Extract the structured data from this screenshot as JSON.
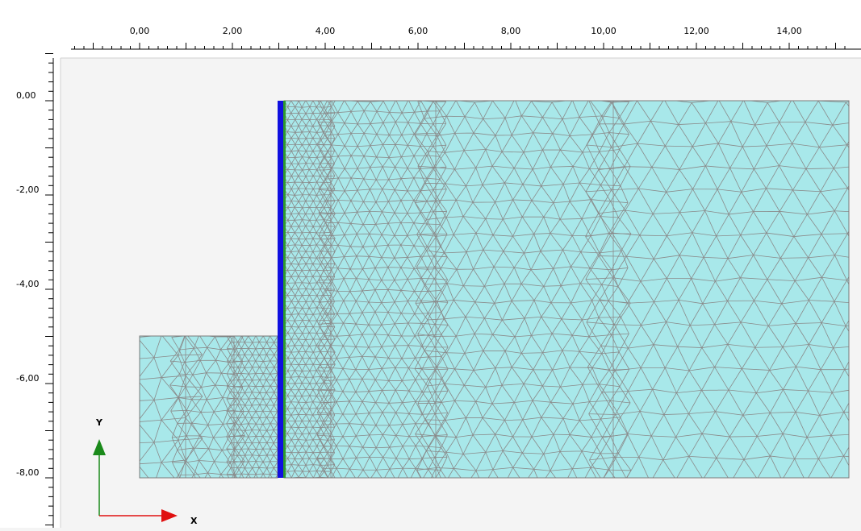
{
  "ruler": {
    "x_labels": [
      "0,00",
      "2,00",
      "4,00",
      "6,00",
      "8,00",
      "10,00",
      "12,00",
      "14,00"
    ],
    "y_labels": [
      "0,00",
      "-2,00",
      "-4,00",
      "-6,00",
      "-8,00"
    ]
  },
  "axes_gizmo": {
    "x_label": "X",
    "y_label": "Y"
  },
  "model": {
    "soil_color": "#a8e8ea",
    "mesh_color": "#8a8a8a",
    "wall_color": "#1010e0",
    "interface_color": "#2e9a2e",
    "x_arrow_color": "#e01010",
    "y_arrow_color": "#1a8a1a"
  }
}
